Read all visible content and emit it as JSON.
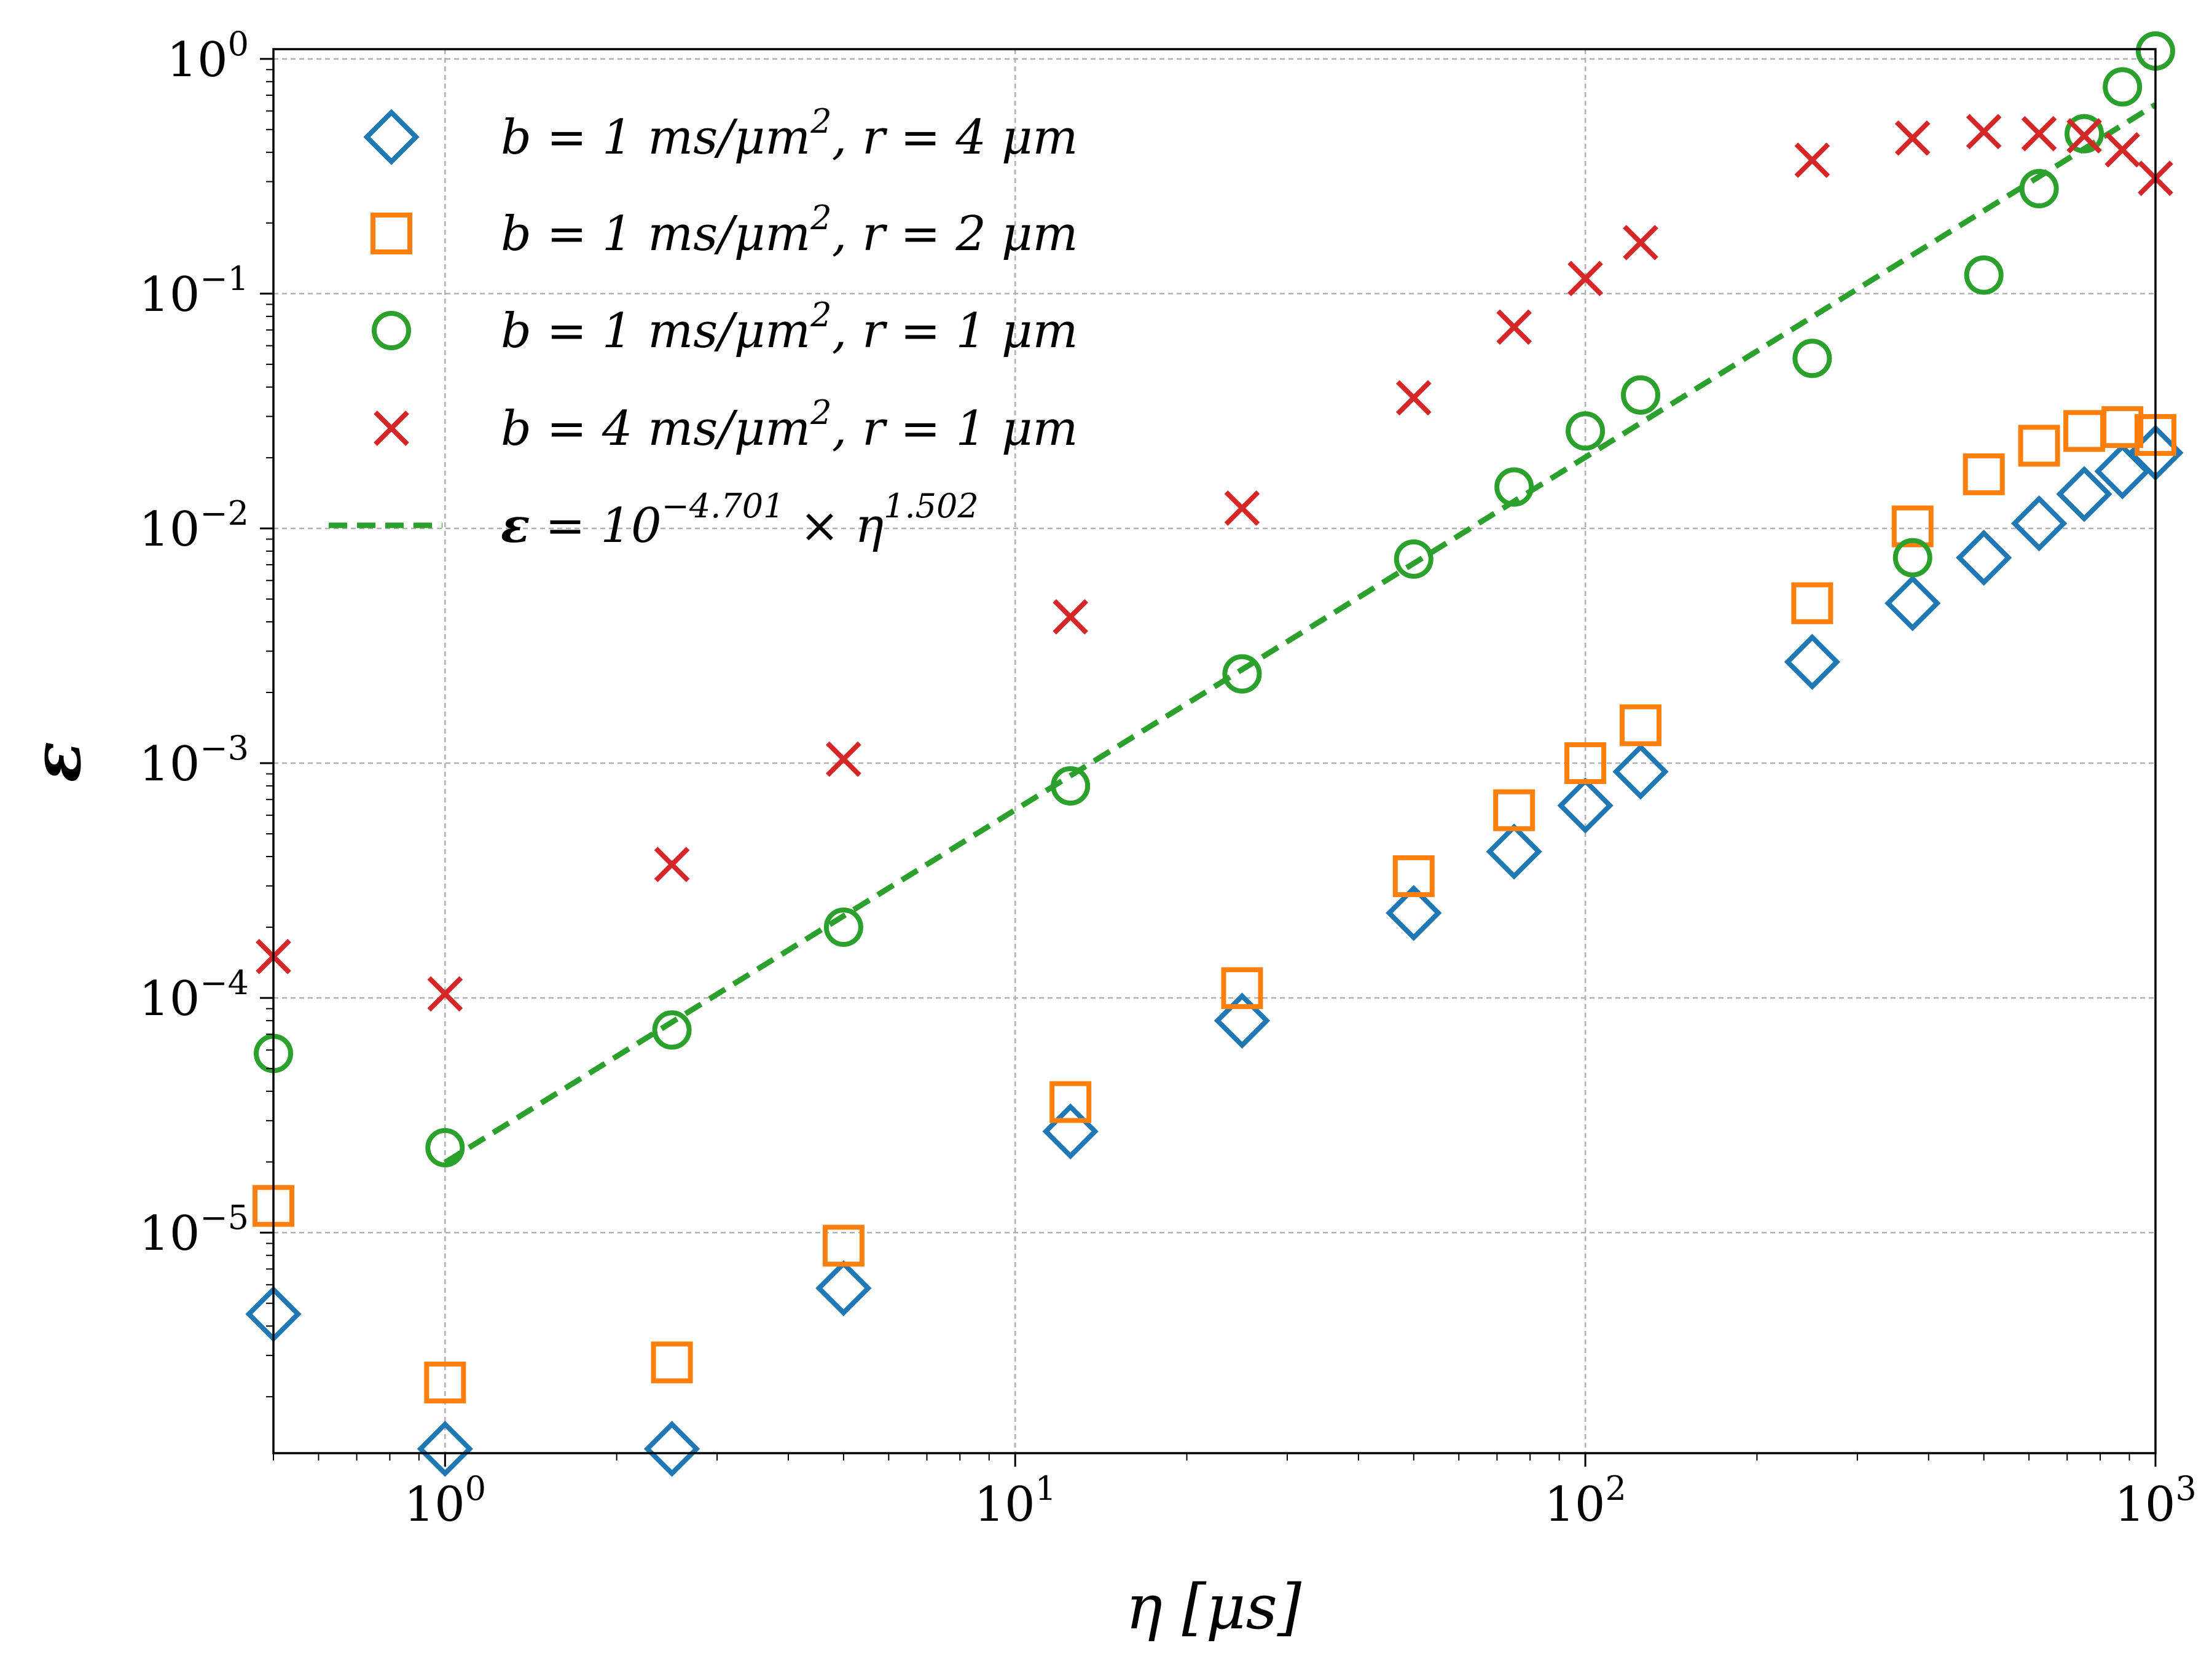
{
  "chart_data": {
    "type": "scatter",
    "xscale": "log",
    "yscale": "log",
    "xlim": [
      0.5,
      1000
    ],
    "ylim": [
      1.15e-06,
      1.1
    ],
    "xlabel": "η [μs]",
    "ylabel": "ε",
    "grid": true,
    "legend_position": "top-left",
    "x_ticks": [
      {
        "value": 1,
        "base": "10",
        "exp": "0"
      },
      {
        "value": 10,
        "base": "10",
        "exp": "1"
      },
      {
        "value": 100,
        "base": "10",
        "exp": "2"
      },
      {
        "value": 1000,
        "base": "10",
        "exp": "3"
      }
    ],
    "y_ticks": [
      {
        "value": 1,
        "base": "10",
        "exp": "0"
      },
      {
        "value": 0.1,
        "base": "10",
        "exp": "−1"
      },
      {
        "value": 0.01,
        "base": "10",
        "exp": "−2"
      },
      {
        "value": 0.001,
        "base": "10",
        "exp": "−3"
      },
      {
        "value": 0.0001,
        "base": "10",
        "exp": "−4"
      },
      {
        "value": 1e-05,
        "base": "10",
        "exp": "−5"
      }
    ],
    "series": [
      {
        "name": "b = 1 ms/μm², r = 4 μm",
        "label": {
          "b": "1",
          "r": "4"
        },
        "marker": "diamond",
        "color": "#1f77b4",
        "x": [
          0.5,
          1,
          2.5,
          5,
          12.5,
          25,
          50,
          75,
          100,
          125,
          250,
          375,
          500,
          625,
          750,
          875,
          1000
        ],
        "y": [
          4.5e-06,
          1.2e-06,
          1.2e-06,
          5.8e-06,
          2.7e-05,
          8e-05,
          0.00023,
          0.00042,
          0.00066,
          0.00092,
          0.0027,
          0.0048,
          0.0075,
          0.0105,
          0.014,
          0.0175,
          0.021
        ]
      },
      {
        "name": "b = 1 ms/μm², r = 2 μm",
        "label": {
          "b": "1",
          "r": "2"
        },
        "marker": "square",
        "color": "#ff7f0e",
        "x": [
          0.5,
          1,
          2.5,
          5,
          12.5,
          25,
          50,
          75,
          100,
          125,
          250,
          375,
          500,
          625,
          750,
          875,
          1000
        ],
        "y": [
          1.3e-05,
          2.3e-06,
          2.8e-06,
          8.8e-06,
          3.6e-05,
          0.00011,
          0.00033,
          0.00063,
          0.001,
          0.00145,
          0.0048,
          0.0102,
          0.017,
          0.0225,
          0.026,
          0.027,
          0.025
        ]
      },
      {
        "name": "b = 1 ms/μm², r = 1 μm",
        "label": {
          "b": "1",
          "r": "1"
        },
        "marker": "circle",
        "color": "#2ca02c",
        "x": [
          0.5,
          1,
          2.5,
          5,
          12.5,
          25,
          50,
          75,
          100,
          125,
          250,
          375,
          500,
          625,
          750,
          875,
          1000
        ],
        "y": [
          5.8e-05,
          2.3e-05,
          7.3e-05,
          0.0002,
          0.0008,
          0.0024,
          0.0074,
          0.015,
          0.026,
          0.037,
          0.053,
          0.0075,
          0.12,
          0.28,
          0.48,
          0.76,
          1.08
        ]
      },
      {
        "name": "b = 4 ms/μm², r = 1 μm",
        "label": {
          "b": "4",
          "r": "1"
        },
        "marker": "x",
        "color": "#d62728",
        "x": [
          0.5,
          1,
          2.5,
          5,
          12.5,
          25,
          50,
          75,
          100,
          125,
          250,
          375,
          500,
          625,
          750,
          875,
          1000
        ],
        "y": [
          0.00015,
          0.000104,
          0.00037,
          0.00104,
          0.0042,
          0.0122,
          0.036,
          0.072,
          0.116,
          0.165,
          0.37,
          0.46,
          0.49,
          0.48,
          0.47,
          0.41,
          0.31
        ]
      }
    ],
    "fit": {
      "name": "ε = 10^−4.701 × η^1.502",
      "coef_text": "−4.701",
      "exp_text": "1.502",
      "log10_coef": -4.701,
      "exponent": 1.502,
      "x_range": [
        1,
        1000
      ],
      "color": "#2ca02c",
      "style": "dashed"
    }
  }
}
